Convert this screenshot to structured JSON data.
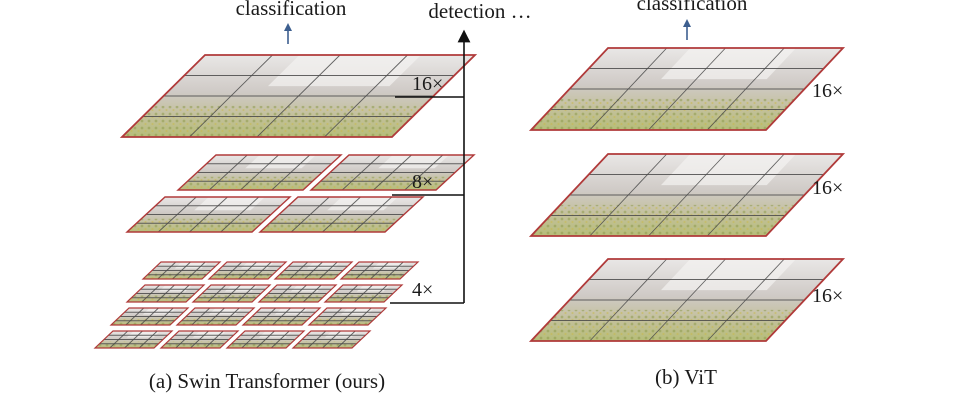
{
  "swin": {
    "caption": "(a) Swin Transformer (ours)",
    "top_label": "classification",
    "branch_label": "detection …",
    "scales": [
      "16×",
      "8×",
      "4×"
    ]
  },
  "vit": {
    "caption": "(b) ViT",
    "top_label": "classification",
    "scales": [
      "16×",
      "16×",
      "16×"
    ]
  },
  "colors": {
    "frame": "#b03a3a",
    "grid": "#4a4a4a",
    "arrow": "#3d5f8f",
    "line": "#111111",
    "tile_sky": "#e6e3e2",
    "tile_building": "#c9c3be",
    "tile_foliage": "#b9c18a"
  }
}
